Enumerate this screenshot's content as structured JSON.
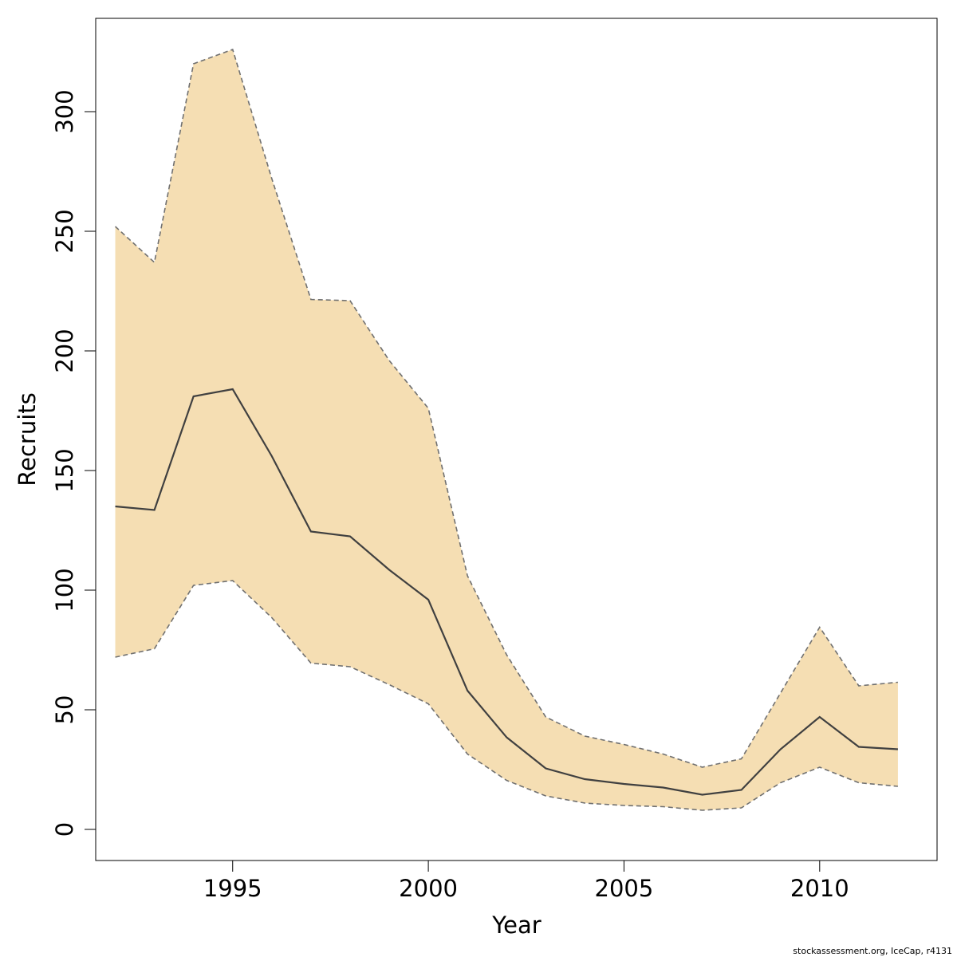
{
  "chart_data": {
    "type": "area",
    "xlabel": "Year",
    "ylabel": "Recruits",
    "xlim": [
      1991.5,
      2013
    ],
    "ylim": [
      -13,
      339
    ],
    "x_ticks": [
      1995,
      2000,
      2005,
      2010
    ],
    "y_ticks": [
      0,
      50,
      100,
      150,
      200,
      250,
      300
    ],
    "grid": false,
    "colors": {
      "band": "#f5deb3",
      "median": "#404040",
      "bounds": "#707070"
    },
    "x": [
      1992,
      1993,
      1994,
      1995,
      1996,
      1997,
      1998,
      1999,
      2000,
      2001,
      2002,
      2003,
      2004,
      2005,
      2006,
      2007,
      2008,
      2009,
      2010,
      2011,
      2012
    ],
    "series": [
      {
        "role": "upper",
        "values": [
          252,
          237,
          320,
          326,
          272,
          221.5,
          221,
          196,
          176,
          106,
          73,
          47,
          39,
          35.5,
          31.5,
          26,
          29.5,
          57,
          84.5,
          60,
          61.5
        ]
      },
      {
        "role": "median",
        "values": [
          135,
          133.5,
          181,
          184,
          156,
          124.5,
          122.5,
          108.5,
          96,
          58,
          38.5,
          25.5,
          21,
          19,
          17.5,
          14.5,
          16.5,
          33.5,
          47,
          34.5,
          33.5
        ]
      },
      {
        "role": "lower",
        "values": [
          72,
          75.5,
          102,
          104,
          88.5,
          69.5,
          68,
          60.5,
          52.5,
          31.5,
          20.5,
          14,
          11,
          10,
          9.5,
          8,
          9,
          19.5,
          26,
          19.5,
          18
        ]
      }
    ]
  },
  "credit": "stockassessment.org, IceCap, r4131"
}
